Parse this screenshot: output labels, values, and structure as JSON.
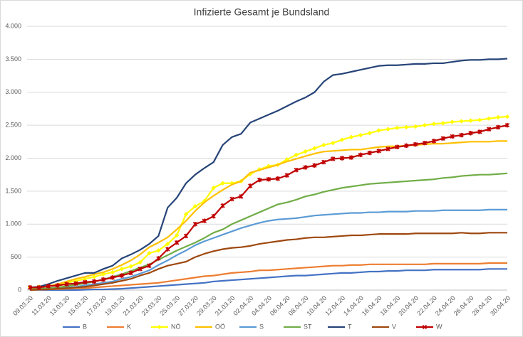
{
  "chart_data": {
    "type": "line",
    "title": "Infizierte Gesamt je Bundsland",
    "categories": [
      "09.03.20",
      null,
      "11.03.20",
      null,
      "13.03.20",
      null,
      "15.03.20",
      null,
      "17.03.20",
      null,
      "19.03.20",
      null,
      "21.03.20",
      null,
      "23.03.20",
      null,
      "25.03.20",
      null,
      "27.03.20",
      null,
      "29.03.20",
      null,
      "31.03.20",
      null,
      "02.04.20",
      null,
      "04.04.20",
      null,
      "06.04.20",
      null,
      "08.04.20",
      null,
      "10.04.20",
      null,
      "12.04.20",
      null,
      "14.04.20",
      null,
      "16.04.20",
      null,
      "18.04.20",
      null,
      "20.04.20",
      null,
      "22.04.20",
      null,
      "24.04.20",
      null,
      "26.04.20",
      null,
      "28.04.20",
      null,
      "30.04.20"
    ],
    "ylim": [
      0,
      4000
    ],
    "yticks": [
      0,
      500,
      {
        "value": 1000,
        "label": "1.000"
      },
      {
        "value": 1500,
        "label": "1.500"
      },
      {
        "value": 2000,
        "label": "2.000"
      },
      {
        "value": 2500,
        "label": "2.500"
      },
      {
        "value": 3000,
        "label": "3.000"
      },
      {
        "value": 3500,
        "label": "3.500"
      },
      {
        "value": 4000,
        "label": "4.000"
      }
    ],
    "grid": true,
    "legend": "bottom",
    "series": [
      {
        "name": "B",
        "color": "#4472c4",
        "values": [
          0,
          0,
          0,
          0,
          0,
          0,
          5,
          10,
          10,
          15,
          20,
          30,
          40,
          50,
          60,
          70,
          80,
          90,
          100,
          110,
          130,
          140,
          150,
          160,
          170,
          180,
          190,
          200,
          210,
          220,
          220,
          230,
          240,
          250,
          260,
          260,
          270,
          280,
          280,
          290,
          290,
          300,
          300,
          300,
          310,
          310,
          310,
          310,
          310,
          310,
          320,
          320,
          320
        ]
      },
      {
        "name": "K",
        "color": "#ed7d31",
        "values": [
          0,
          5,
          10,
          15,
          20,
          25,
          30,
          40,
          50,
          60,
          70,
          80,
          90,
          100,
          110,
          130,
          150,
          170,
          190,
          210,
          220,
          240,
          260,
          270,
          280,
          300,
          300,
          310,
          320,
          330,
          340,
          350,
          360,
          370,
          370,
          380,
          380,
          390,
          390,
          390,
          390,
          390,
          390,
          390,
          400,
          400,
          400,
          400,
          400,
          400,
          410,
          410,
          410
        ]
      },
      {
        "name": "NÖ",
        "color": "#ffff00",
        "marker": "diamond",
        "values": [
          40,
          50,
          60,
          80,
          110,
          140,
          170,
          200,
          240,
          270,
          320,
          360,
          420,
          560,
          600,
          700,
          830,
          1150,
          1270,
          1350,
          1550,
          1620,
          1620,
          1650,
          1760,
          1830,
          1880,
          1900,
          1980,
          2050,
          2100,
          2150,
          2200,
          2230,
          2280,
          2320,
          2350,
          2380,
          2420,
          2440,
          2460,
          2470,
          2480,
          2500,
          2520,
          2530,
          2550,
          2560,
          2570,
          2580,
          2600,
          2620,
          2630
        ]
      },
      {
        "name": "OÖ",
        "color": "#ffc000",
        "values": [
          30,
          40,
          60,
          90,
          130,
          170,
          200,
          240,
          270,
          320,
          380,
          450,
          540,
          650,
          720,
          800,
          920,
          1050,
          1200,
          1330,
          1430,
          1520,
          1600,
          1650,
          1780,
          1820,
          1860,
          1900,
          1950,
          1990,
          2030,
          2070,
          2100,
          2110,
          2120,
          2130,
          2130,
          2150,
          2170,
          2180,
          2180,
          2190,
          2200,
          2210,
          2220,
          2220,
          2230,
          2240,
          2250,
          2250,
          2250,
          2260,
          2260
        ]
      },
      {
        "name": "S",
        "color": "#5b9bd5",
        "values": [
          10,
          10,
          20,
          30,
          40,
          50,
          70,
          90,
          110,
          130,
          170,
          200,
          250,
          300,
          380,
          450,
          530,
          600,
          680,
          740,
          790,
          840,
          890,
          940,
          980,
          1020,
          1050,
          1070,
          1080,
          1090,
          1110,
          1130,
          1140,
          1150,
          1160,
          1170,
          1170,
          1180,
          1180,
          1190,
          1190,
          1190,
          1200,
          1200,
          1200,
          1210,
          1210,
          1210,
          1210,
          1210,
          1220,
          1220,
          1220
        ]
      },
      {
        "name": "ST",
        "color": "#70ad47",
        "values": [
          10,
          20,
          30,
          40,
          60,
          80,
          100,
          130,
          160,
          200,
          240,
          290,
          340,
          390,
          460,
          530,
          600,
          660,
          720,
          790,
          870,
          920,
          1000,
          1060,
          1120,
          1180,
          1240,
          1300,
          1330,
          1370,
          1420,
          1450,
          1490,
          1520,
          1550,
          1570,
          1590,
          1610,
          1620,
          1630,
          1640,
          1650,
          1660,
          1670,
          1680,
          1700,
          1710,
          1730,
          1740,
          1750,
          1750,
          1760,
          1770
        ]
      },
      {
        "name": "T",
        "color": "#264478",
        "values": [
          40,
          50,
          90,
          140,
          180,
          220,
          260,
          260,
          320,
          370,
          480,
          540,
          610,
          700,
          820,
          1250,
          1400,
          1620,
          1750,
          1850,
          1940,
          2200,
          2320,
          2370,
          2540,
          2600,
          2660,
          2720,
          2790,
          2860,
          2920,
          3000,
          3160,
          3260,
          3280,
          3310,
          3340,
          3370,
          3400,
          3410,
          3410,
          3420,
          3430,
          3430,
          3440,
          3440,
          3460,
          3480,
          3490,
          3490,
          3500,
          3500,
          3510
        ]
      },
      {
        "name": "V",
        "color": "#9e480e",
        "values": [
          0,
          10,
          10,
          20,
          30,
          40,
          50,
          70,
          90,
          110,
          140,
          170,
          220,
          260,
          320,
          370,
          400,
          430,
          500,
          550,
          590,
          620,
          640,
          650,
          670,
          700,
          720,
          740,
          760,
          770,
          790,
          800,
          800,
          810,
          820,
          830,
          830,
          840,
          850,
          850,
          850,
          850,
          860,
          860,
          860,
          860,
          860,
          870,
          860,
          860,
          870,
          870,
          870
        ]
      },
      {
        "name": "W",
        "color": "#c00000",
        "marker": "star",
        "values": [
          40,
          40,
          60,
          70,
          90,
          100,
          120,
          130,
          160,
          190,
          220,
          260,
          320,
          370,
          480,
          620,
          720,
          820,
          1000,
          1050,
          1120,
          1280,
          1380,
          1420,
          1580,
          1670,
          1680,
          1690,
          1740,
          1820,
          1860,
          1890,
          1940,
          1990,
          2000,
          2010,
          2050,
          2080,
          2110,
          2140,
          2170,
          2190,
          2210,
          2230,
          2260,
          2300,
          2330,
          2350,
          2380,
          2400,
          2440,
          2470,
          2500
        ]
      }
    ]
  }
}
